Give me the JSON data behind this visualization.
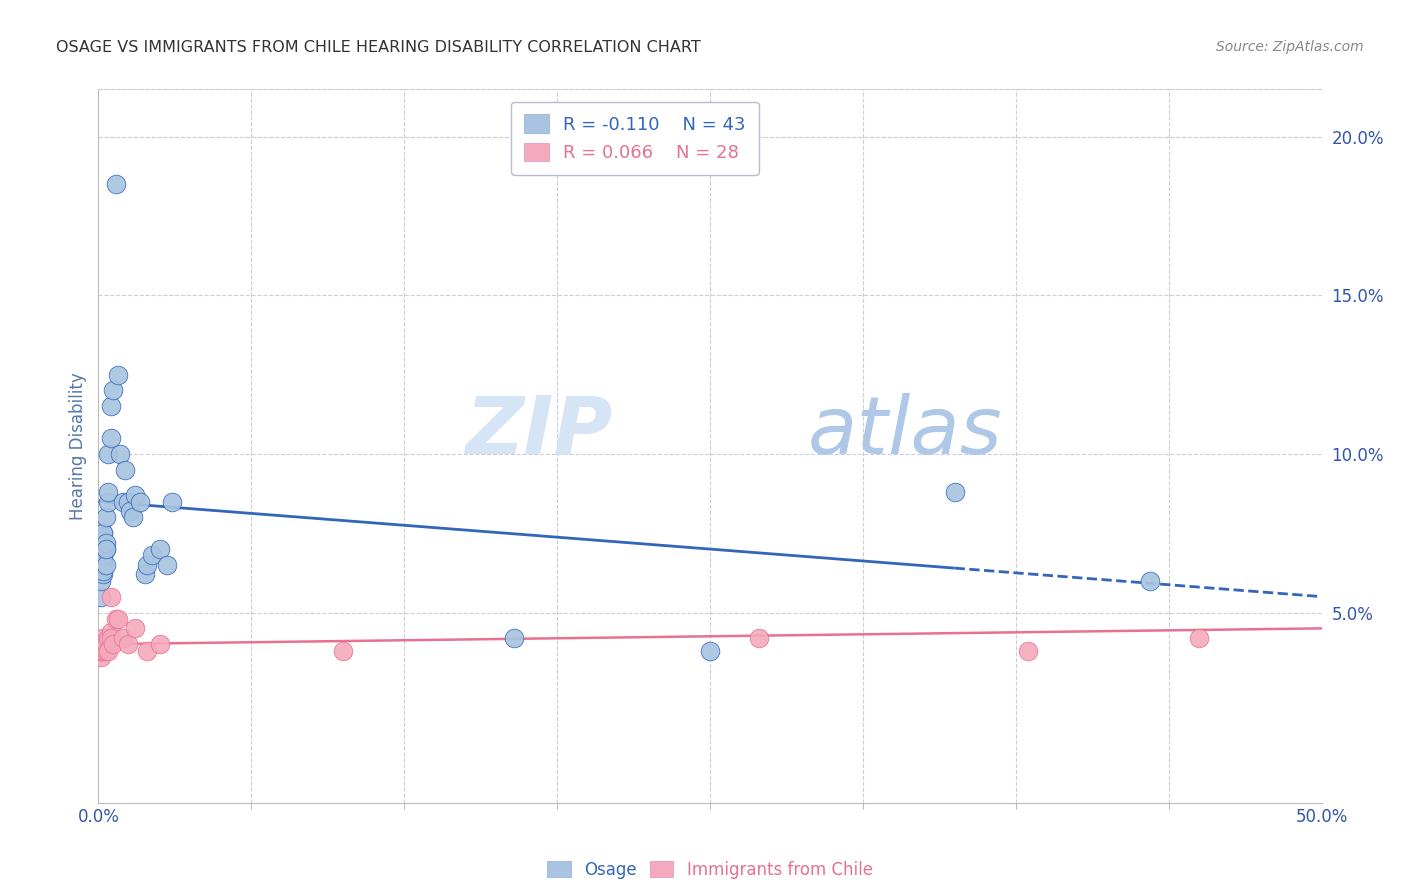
{
  "title": "OSAGE VS IMMIGRANTS FROM CHILE HEARING DISABILITY CORRELATION CHART",
  "source": "Source: ZipAtlas.com",
  "ylabel": "Hearing Disability",
  "right_yticks": [
    "20.0%",
    "15.0%",
    "10.0%",
    "5.0%"
  ],
  "right_ytick_vals": [
    0.2,
    0.15,
    0.1,
    0.05
  ],
  "xlim": [
    0.0,
    0.5
  ],
  "ylim": [
    -0.01,
    0.215
  ],
  "legend1_r": "-0.110",
  "legend1_n": "43",
  "legend2_r": "0.066",
  "legend2_n": "28",
  "blue_color": "#A8C4E0",
  "pink_color": "#F4AABC",
  "line_blue": "#3366BB",
  "line_pink": "#E87090",
  "watermark_zip": "ZIP",
  "watermark_atlas": "atlas",
  "osage_x": [
    0.001,
    0.003,
    0.001,
    0.001,
    0.002,
    0.001,
    0.002,
    0.001,
    0.002,
    0.002,
    0.002,
    0.002,
    0.002,
    0.003,
    0.003,
    0.003,
    0.003,
    0.004,
    0.004,
    0.004,
    0.005,
    0.005,
    0.006,
    0.007,
    0.008,
    0.009,
    0.01,
    0.011,
    0.012,
    0.013,
    0.014,
    0.015,
    0.017,
    0.019,
    0.02,
    0.022,
    0.025,
    0.028,
    0.03,
    0.17,
    0.25,
    0.35,
    0.43
  ],
  "osage_y": [
    0.068,
    0.07,
    0.055,
    0.06,
    0.062,
    0.065,
    0.067,
    0.072,
    0.075,
    0.065,
    0.063,
    0.068,
    0.075,
    0.072,
    0.08,
    0.065,
    0.07,
    0.085,
    0.088,
    0.1,
    0.115,
    0.105,
    0.12,
    0.185,
    0.125,
    0.1,
    0.085,
    0.095,
    0.085,
    0.082,
    0.08,
    0.087,
    0.085,
    0.062,
    0.065,
    0.068,
    0.07,
    0.065,
    0.085,
    0.042,
    0.038,
    0.088,
    0.06
  ],
  "chile_x": [
    0.0,
    0.0,
    0.001,
    0.001,
    0.001,
    0.001,
    0.002,
    0.002,
    0.002,
    0.003,
    0.003,
    0.004,
    0.004,
    0.005,
    0.005,
    0.005,
    0.006,
    0.007,
    0.008,
    0.01,
    0.012,
    0.015,
    0.02,
    0.025,
    0.1,
    0.27,
    0.38,
    0.45
  ],
  "chile_y": [
    0.04,
    0.038,
    0.036,
    0.038,
    0.04,
    0.038,
    0.042,
    0.038,
    0.04,
    0.038,
    0.04,
    0.042,
    0.038,
    0.044,
    0.042,
    0.055,
    0.04,
    0.048,
    0.048,
    0.042,
    0.04,
    0.045,
    0.038,
    0.04,
    0.038,
    0.042,
    0.038,
    0.042
  ],
  "bg_color": "#FFFFFF",
  "grid_color": "#CCCCDD",
  "title_color": "#333333",
  "axis_label_color": "#5577AA",
  "tick_color": "#3355AA",
  "blue_line_solid_end": 0.35,
  "blue_line_start_y": 0.085,
  "blue_line_end_y": 0.055,
  "pink_line_start_y": 0.04,
  "pink_line_end_y": 0.045
}
